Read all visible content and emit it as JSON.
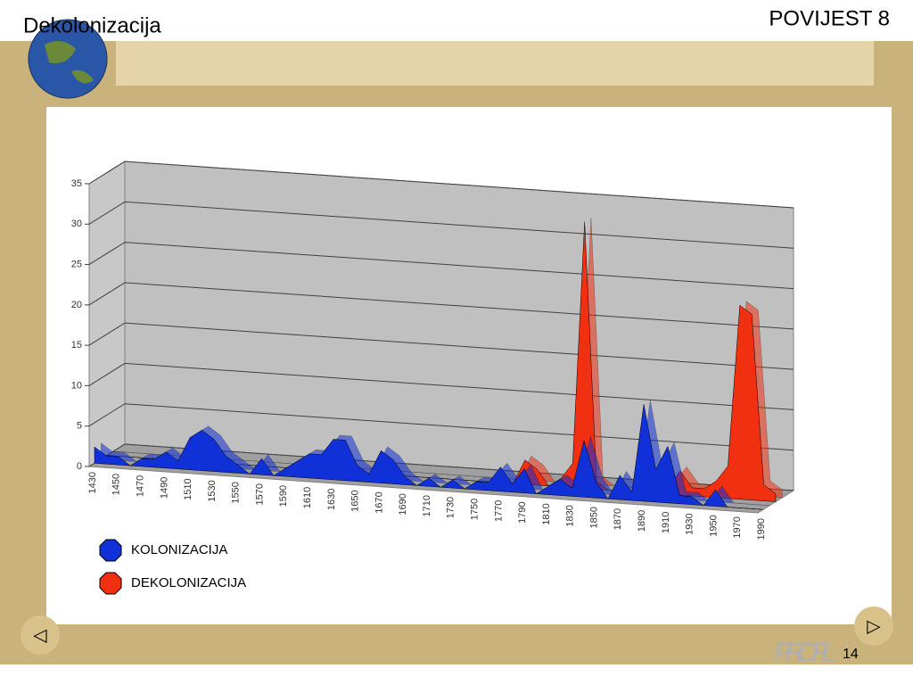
{
  "slide": {
    "title": "Dekolonizacija",
    "course": "POVIJEST 8",
    "logo": "PROFIL",
    "page": "14"
  },
  "nav": {
    "prev": "◁",
    "next": "▷"
  },
  "chart_data": {
    "type": "area3d",
    "categories": [
      1430,
      null,
      1450,
      null,
      1470,
      null,
      1490,
      null,
      1510,
      null,
      1530,
      null,
      1550,
      null,
      1570,
      null,
      1590,
      null,
      1610,
      null,
      1630,
      null,
      1650,
      null,
      1670,
      null,
      1690,
      null,
      1710,
      null,
      1730,
      null,
      1750,
      null,
      1770,
      null,
      1790,
      null,
      1810,
      null,
      1830,
      null,
      1850,
      null,
      1870,
      null,
      1890,
      null,
      1910,
      null,
      1930,
      null,
      1950,
      null,
      1970,
      null,
      1990
    ],
    "series": [
      {
        "name": "KOLONIZACIJA",
        "color": "#1030d8",
        "values": [
          2,
          1,
          1,
          0,
          1,
          1,
          2,
          1,
          4,
          5,
          4,
          2,
          1,
          0,
          2,
          0,
          1,
          2,
          3,
          3,
          5,
          5,
          2,
          1,
          4,
          3,
          1,
          0,
          1,
          0,
          1,
          0,
          1,
          1,
          3,
          1,
          3,
          0,
          1,
          2,
          1,
          7,
          2,
          0,
          3,
          1,
          12,
          4,
          7,
          1,
          1,
          0,
          2,
          0,
          0,
          0,
          0
        ]
      },
      {
        "name": "DEKOLONIZACIJA",
        "color": "#f03010",
        "values": [
          0,
          0,
          0,
          0,
          0,
          0,
          0,
          0,
          0,
          0,
          0,
          0,
          0,
          0,
          0,
          0,
          0,
          0,
          0,
          0,
          0,
          0,
          0,
          0,
          0,
          0,
          0,
          0,
          0,
          0,
          0,
          0,
          0,
          0,
          0,
          3,
          2,
          0,
          1,
          3,
          33,
          1,
          0,
          0,
          0,
          1,
          0,
          1,
          3,
          1,
          1,
          2,
          4,
          24,
          23,
          2,
          1
        ]
      }
    ],
    "ylim": [
      0,
      35
    ],
    "yticks": [
      0,
      5,
      10,
      15,
      20,
      25,
      30,
      35
    ],
    "grid": true,
    "legend": "bottom-left"
  }
}
